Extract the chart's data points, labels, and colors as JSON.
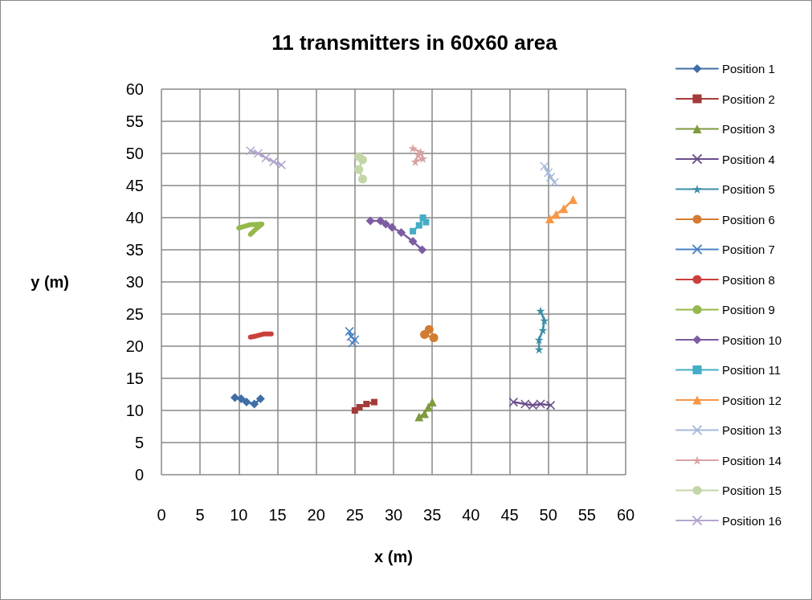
{
  "chart_data": {
    "type": "line",
    "title": "11 transmitters in 60x60 area",
    "xlabel": "x (m)",
    "ylabel": "y (m)",
    "xlim": [
      0,
      60
    ],
    "ylim": [
      0,
      60
    ],
    "xticks": [
      0,
      5,
      10,
      15,
      20,
      25,
      30,
      35,
      40,
      45,
      50,
      55,
      60
    ],
    "yticks": [
      0,
      5,
      10,
      15,
      20,
      25,
      30,
      35,
      40,
      45,
      50,
      55,
      60
    ],
    "grid": true,
    "legend": "right",
    "line_style": "solid",
    "series": [
      {
        "name": "Position 1",
        "color": "#3f6ea6",
        "marker": "diamond",
        "x": [
          9.5,
          10.3,
          11,
          12,
          12.8
        ],
        "values": [
          12,
          11.8,
          11.3,
          11,
          11.8
        ]
      },
      {
        "name": "Position 2",
        "color": "#a33b38",
        "marker": "square",
        "x": [
          25,
          25.6,
          26.5,
          27.5
        ],
        "values": [
          10,
          10.5,
          11,
          11.3
        ]
      },
      {
        "name": "Position 3",
        "color": "#7f9a3f",
        "marker": "triangle",
        "x": [
          33.3,
          34,
          34.5,
          35
        ],
        "values": [
          9,
          9.5,
          10.5,
          11.3
        ]
      },
      {
        "name": "Position 4",
        "color": "#6b4f8a",
        "marker": "cross",
        "x": [
          45.5,
          47,
          48,
          49,
          50.3
        ],
        "values": [
          11.3,
          11,
          10.8,
          11,
          10.8
        ]
      },
      {
        "name": "Position 5",
        "color": "#3c8fa6",
        "marker": "star",
        "x": [
          49,
          49.5,
          49.3,
          48.8,
          48.8
        ],
        "values": [
          25.5,
          24,
          22.5,
          21,
          19.5
        ]
      },
      {
        "name": "Position 6",
        "color": "#d37b31",
        "marker": "circle",
        "x": [
          34.6,
          34,
          35.2
        ],
        "values": [
          22.6,
          21.8,
          21.3
        ]
      },
      {
        "name": "Position 7",
        "color": "#4a82c4",
        "marker": "cross",
        "x": [
          24.3,
          24.5,
          25,
          24.7
        ],
        "values": [
          22.3,
          21.5,
          21,
          20.5
        ]
      },
      {
        "name": "Position 8",
        "color": "#c9403d",
        "marker": "none",
        "x": [
          11.5,
          12.3,
          13.2,
          14.2
        ],
        "values": [
          21.4,
          21.6,
          21.9,
          21.9
        ]
      },
      {
        "name": "Position 9",
        "color": "#95b84b",
        "marker": "none",
        "x": [
          10,
          11.4,
          13,
          12,
          11.5
        ],
        "values": [
          38.4,
          38.9,
          39,
          38,
          37.4
        ]
      },
      {
        "name": "Position 10",
        "color": "#7d5ca2",
        "marker": "diamond",
        "x": [
          27,
          28.3,
          29,
          29.8,
          31,
          32.5,
          33.7
        ],
        "values": [
          39.5,
          39.5,
          39,
          38.5,
          37.7,
          36.3,
          35
        ]
      },
      {
        "name": "Position 11",
        "color": "#45adc6",
        "marker": "square",
        "x": [
          32.5,
          33.3,
          33.8,
          34.2
        ],
        "values": [
          37.9,
          38.8,
          40,
          39.3
        ]
      },
      {
        "name": "Position 12",
        "color": "#f79646",
        "marker": "triangle",
        "x": [
          50.2,
          51,
          52,
          53.2
        ],
        "values": [
          39.8,
          40.5,
          41.4,
          42.8
        ]
      },
      {
        "name": "Position 13",
        "color": "#a5b9dc",
        "marker": "cross",
        "x": [
          49.5,
          50,
          50.3,
          50.8
        ],
        "values": [
          48,
          47,
          46.3,
          45.5
        ]
      },
      {
        "name": "Position 14",
        "color": "#d8a3a2",
        "marker": "star",
        "x": [
          32.5,
          33.5,
          33.8,
          32.8,
          33.2
        ],
        "values": [
          50.8,
          50.2,
          49.2,
          48.7,
          49.8
        ]
      },
      {
        "name": "Position 15",
        "color": "#c3d6a8",
        "marker": "circle",
        "x": [
          25.5,
          26,
          25.5,
          26
        ],
        "values": [
          49.5,
          49,
          47.5,
          46
        ]
      },
      {
        "name": "Position 16",
        "color": "#b3a6cc",
        "marker": "cross",
        "x": [
          11.5,
          12.5,
          13.5,
          14.5,
          15.5
        ],
        "values": [
          50.4,
          50,
          49.3,
          48.7,
          48.2
        ]
      }
    ]
  }
}
